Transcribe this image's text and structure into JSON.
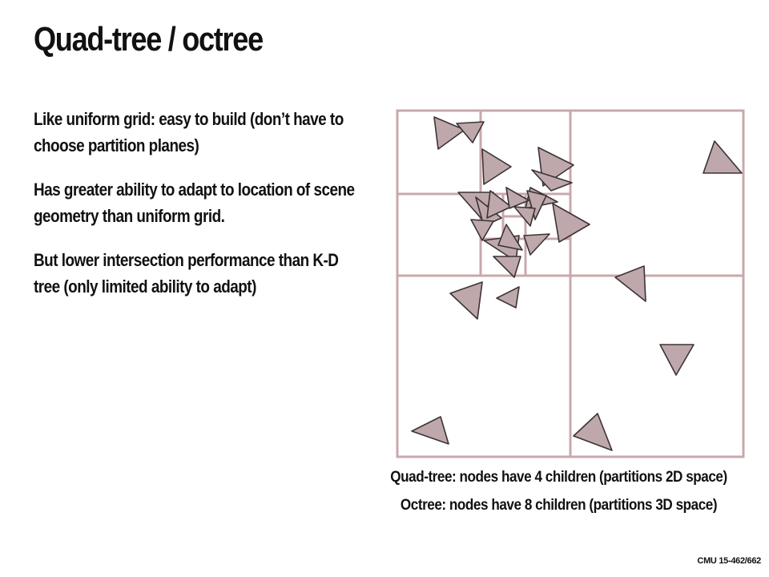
{
  "slide": {
    "title": "Quad-tree / octree",
    "bullets": [
      "Like uniform grid: easy to build (don’t have to choose partition planes)",
      "Has greater ability to adapt to location of scene geometry than uniform grid.",
      "But lower intersection performance than K-D tree (only limited ability to adapt)"
    ],
    "captions": [
      "Quad-tree: nodes have 4 children (partitions 2D space)",
      "Octree: nodes have 8 children (partitions 3D space)"
    ],
    "footer": "CMU 15-462/662"
  },
  "diagram": {
    "colors": {
      "grid": "#c8a8ac",
      "triangle_fill": "#bfa8ab",
      "triangle_stroke": "#3b3335"
    }
  }
}
